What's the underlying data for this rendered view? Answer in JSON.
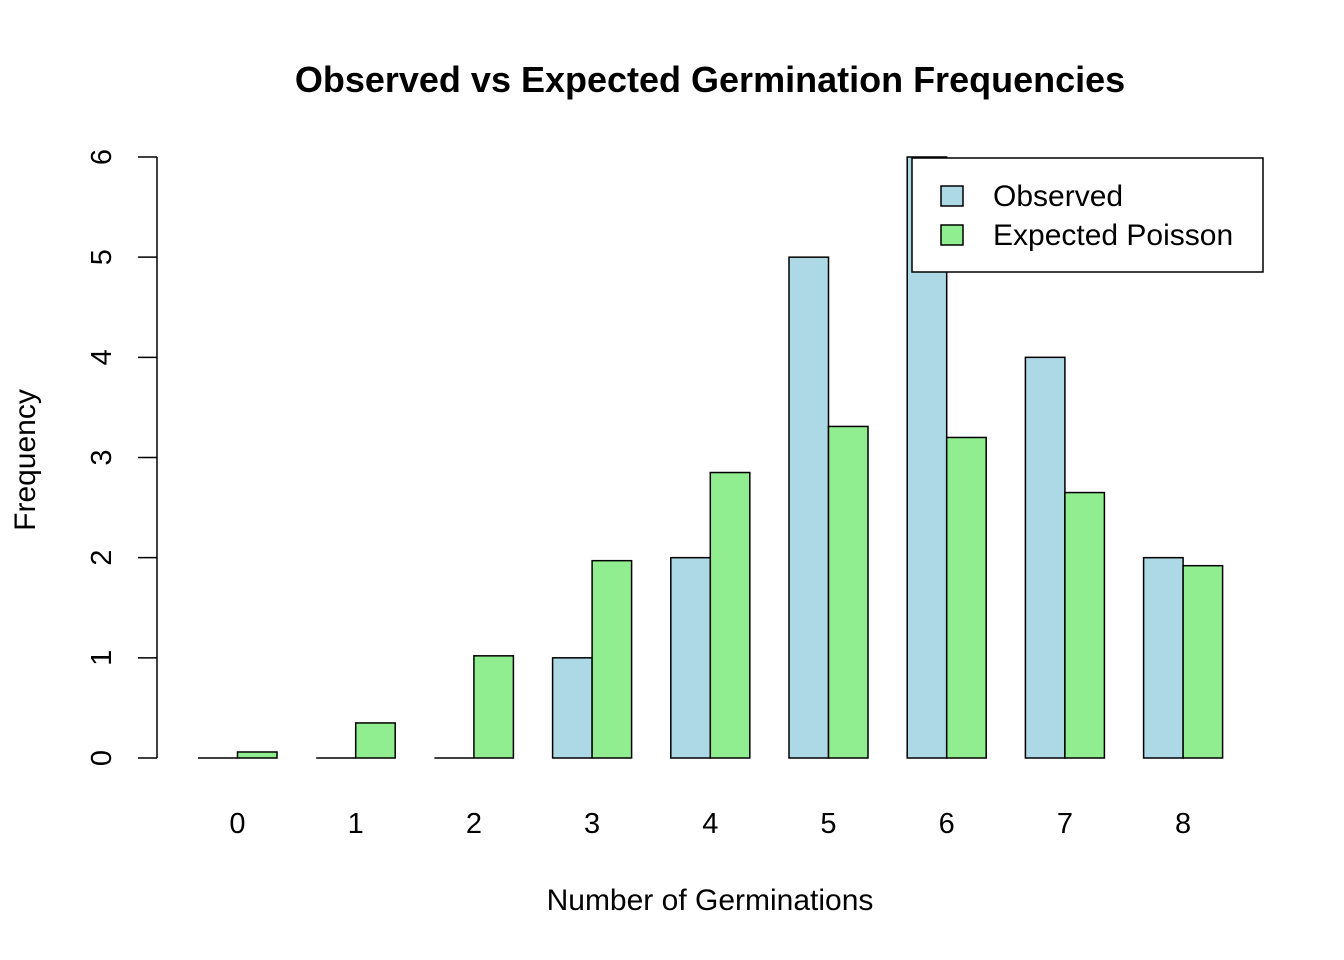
{
  "chart_data": {
    "type": "bar",
    "title": "Observed vs Expected Germination Frequencies",
    "xlabel": "Number of Germinations",
    "ylabel": "Frequency",
    "categories": [
      "0",
      "1",
      "2",
      "3",
      "4",
      "5",
      "6",
      "7",
      "8"
    ],
    "series": [
      {
        "name": "Observed",
        "color": "#add8e6",
        "values": [
          0,
          0,
          0,
          1,
          2,
          5,
          6,
          4,
          2
        ]
      },
      {
        "name": "Expected Poisson",
        "color": "#90ee90",
        "values": [
          0.06,
          0.35,
          1.02,
          1.97,
          2.85,
          3.31,
          3.2,
          2.65,
          1.92
        ]
      }
    ],
    "ylim": [
      0,
      6
    ],
    "yticks": [
      "0",
      "1",
      "2",
      "3",
      "4",
      "5",
      "6"
    ],
    "grid": false,
    "legend_position": "top-right"
  }
}
